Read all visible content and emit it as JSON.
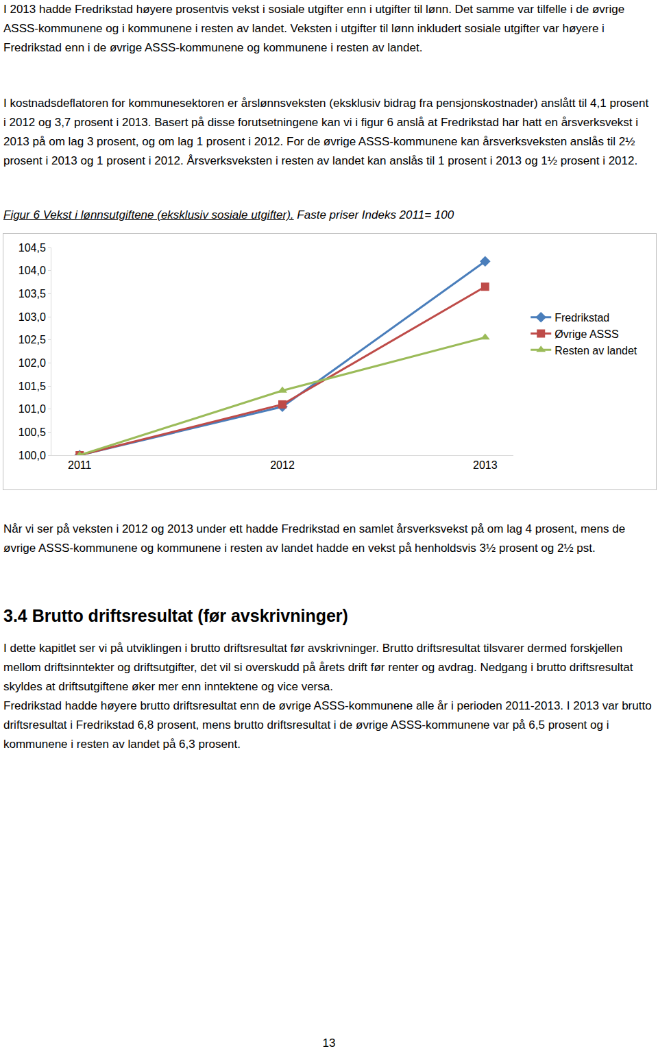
{
  "document": {
    "top_paragraphs": [
      "I 2013 hadde Fredrikstad høyere prosentvis vekst i sosiale utgifter enn i utgifter til lønn. Det samme var tilfelle i de øvrige ASSS-kommunene og i kommunene i resten av landet. Veksten i utgifter til lønn inkludert sosiale utgifter var høyere i Fredrikstad enn i de øvrige ASSS-kommunene og kommunene i resten av landet.",
      "I kostnadsdeflatoren for kommunesektoren er årslønnsveksten (eksklusiv bidrag fra pensjonskostnader) anslått til 4,1 prosent i 2012 og 3,7 prosent i 2013. Basert på disse forutsetningene kan vi i figur 6 anslå at Fredrikstad har hatt en årsverksvekst i 2013 på om lag 3 prosent, og om lag 1 prosent i 2012. For de øvrige ASSS-kommunene kan årsverksveksten anslås til 2½ prosent i 2013 og 1 prosent i 2012. Årsverksveksten i resten av landet kan anslås til 1 prosent i 2013 og 1½ prosent i 2012."
    ],
    "caption_main": "Figur 6 Vekst i lønnsutgiftene (eksklusiv sosiale utgifter).",
    "caption_sub": " Faste priser Indeks 2011= 100",
    "after_paragraphs": [
      "Når vi ser på veksten i 2012 og 2013 under ett hadde Fredrikstad en samlet årsverksvekst på om lag 4 prosent, mens de øvrige ASSS-kommunene og kommunene i resten av landet hadde en vekst på henholdsvis 3½ prosent og 2½ pst."
    ],
    "heading": "3.4  Brutto driftsresultat (før avskrivninger)",
    "section_paragraphs": [
      "I dette kapitlet ser vi på utviklingen i brutto driftsresultat før avskrivninger. Brutto driftsresultat tilsvarer dermed forskjellen mellom driftsinntekter og driftsutgifter, det vil si overskudd på årets drift før renter og avdrag. Nedgang i brutto driftsresultat skyldes at driftsutgiftene øker mer enn inntektene og vice versa.",
      "Fredrikstad hadde høyere brutto driftsresultat enn de øvrige ASSS-kommunene alle år i perioden 2011-2013. I 2013 var brutto driftsresultat i Fredrikstad 6,8 prosent, mens brutto driftsresultat i de øvrige ASSS-kommunene var på 6,5 prosent og i kommunene i resten av landet på 6,3 prosent."
    ],
    "page_number": "13"
  },
  "chart_data": {
    "type": "line",
    "categories": [
      "2011",
      "2012",
      "2013"
    ],
    "series": [
      {
        "name": "Fredrikstad",
        "color": "#4a7ebb",
        "marker": "diamond",
        "values": [
          100.0,
          101.05,
          104.2
        ]
      },
      {
        "name": "Øvrige ASSS",
        "color": "#be4b48",
        "marker": "square",
        "values": [
          100.0,
          101.1,
          103.65
        ]
      },
      {
        "name": "Resten av landet",
        "color": "#9bbb59",
        "marker": "triangle-up",
        "values": [
          100.0,
          101.4,
          102.55
        ]
      }
    ],
    "ylim": [
      100,
      104.5
    ],
    "yticks": [
      {
        "value": 100,
        "label": "100,0"
      },
      {
        "value": 100.5,
        "label": "100,5"
      },
      {
        "value": 101,
        "label": "101,0"
      },
      {
        "value": 101.5,
        "label": "101,5"
      },
      {
        "value": 102,
        "label": "102,0"
      },
      {
        "value": 102.5,
        "label": "102,5"
      },
      {
        "value": 103,
        "label": "103,0"
      },
      {
        "value": 103.5,
        "label": "103,5"
      },
      {
        "value": 104,
        "label": "104,0"
      },
      {
        "value": 104.5,
        "label": "104,5"
      }
    ],
    "grid": false,
    "legend": "right"
  }
}
